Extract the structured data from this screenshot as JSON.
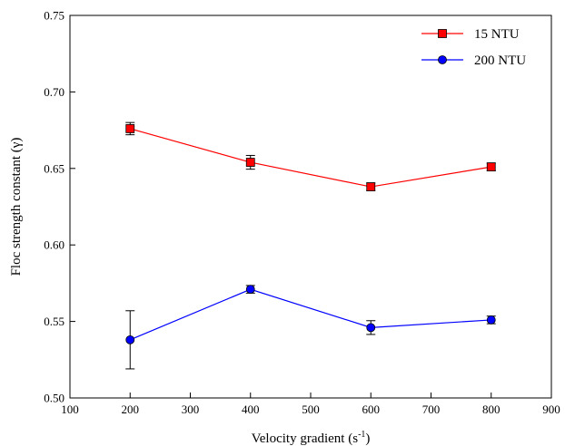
{
  "chart_data": {
    "type": "line",
    "xlabel_main": "Velocity gradient (s",
    "xlabel_sup": "-1",
    "xlabel_close": ")",
    "ylabel": "Floc strength constant (γ)",
    "xlim": [
      100,
      900
    ],
    "ylim": [
      0.5,
      0.75
    ],
    "xticks": [
      100,
      200,
      300,
      400,
      500,
      600,
      700,
      800,
      900
    ],
    "yticks": [
      "0.50",
      "0.55",
      "0.60",
      "0.65",
      "0.70",
      "0.75"
    ],
    "x": [
      200,
      400,
      600,
      800
    ],
    "series": [
      {
        "name": "15 NTU",
        "color": "#ff0000",
        "marker": "square",
        "values": [
          0.676,
          0.654,
          0.638,
          0.651
        ],
        "errors": [
          0.004,
          0.0045,
          0.0025,
          0.0025
        ]
      },
      {
        "name": "200 NTU",
        "color": "#0000ff",
        "marker": "circle",
        "values": [
          0.538,
          0.571,
          0.546,
          0.551
        ],
        "errors": [
          0.019,
          0.0025,
          0.0045,
          0.0025
        ]
      }
    ],
    "legend_position": "top-right",
    "grid": false
  }
}
